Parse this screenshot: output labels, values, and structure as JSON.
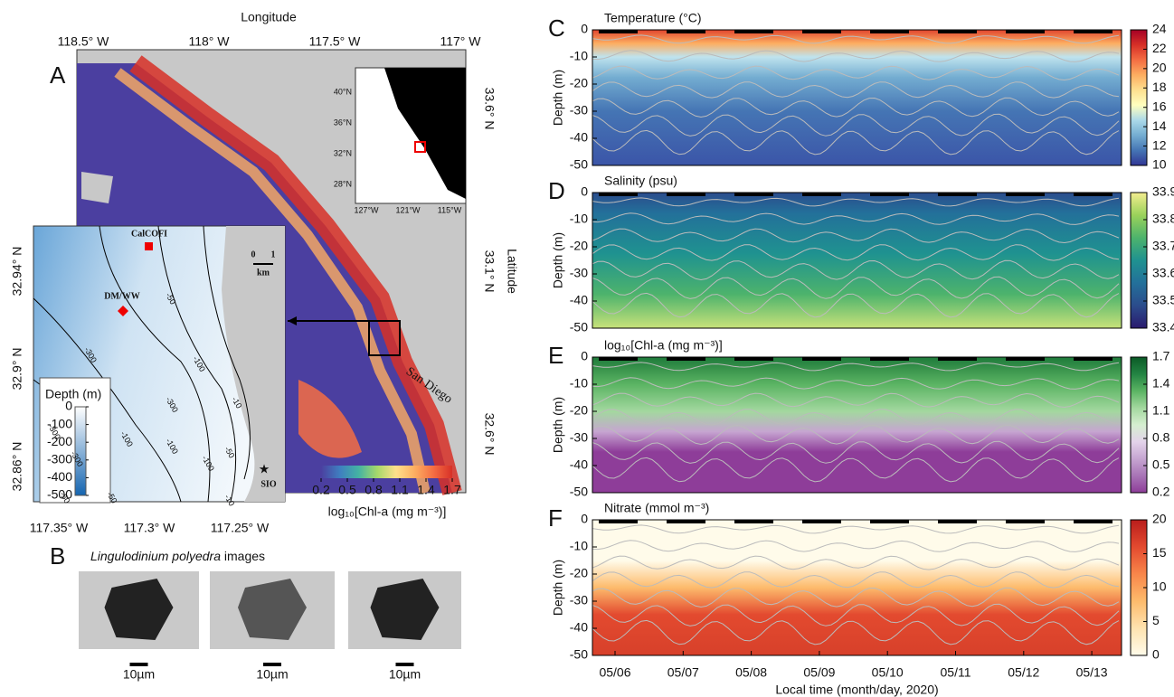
{
  "map": {
    "panel": "A",
    "x_label": "Longitude",
    "y_label": "Latitude",
    "lon_ticks": [
      "118.5° W",
      "118° W",
      "117.5° W",
      "117° W"
    ],
    "lat_ticks": [
      "33.6° N",
      "33.1° N",
      "32.6° N"
    ],
    "place": "San Diego",
    "colorbar_label": "log₁₀[Chl-a (mg m⁻³)]",
    "colorbar_ticks": [
      0.2,
      0.5,
      0.8,
      1.1,
      1.4,
      1.7
    ],
    "colormap": [
      "#4b3fa0",
      "#3f7fc0",
      "#44b3a3",
      "#a6d96a",
      "#fee08b",
      "#fdae61",
      "#f46d43",
      "#d73027"
    ],
    "overview": {
      "lat_ticks": [
        "40°N",
        "36°N",
        "32°N",
        "28°N"
      ],
      "lon_ticks": [
        "127°W",
        "121°W",
        "115°W"
      ]
    },
    "zoom": {
      "sites": [
        "CalCOFI",
        "DM/WW",
        "SIO"
      ],
      "scale": [
        "0",
        "1",
        "km"
      ],
      "contours": [
        "-50",
        "-300",
        "-100",
        "-10",
        "-300",
        "-100",
        "-50",
        "-300",
        "-100",
        "-50",
        "-10",
        "-50",
        "-100",
        "-300"
      ],
      "lat_ticks": [
        "32.94° N",
        "32.9° N",
        "32.86° N"
      ],
      "lon_ticks": [
        "117.35° W",
        "117.3° W",
        "117.25° W"
      ],
      "depth_label": "Depth (m)",
      "depth_ticks": [
        0,
        -100,
        -200,
        -300,
        -400,
        -500
      ]
    }
  },
  "images": {
    "panel": "B",
    "title": "Lingulodinium polyedra",
    "title_rest": "images",
    "scale_labels": [
      "10µm",
      "10µm",
      "10µm"
    ]
  },
  "chart_data": [
    {
      "type": "heatmap",
      "panel": "C",
      "title": "Temperature (°C)",
      "y_label": "Depth (m)",
      "ylim": [
        -50,
        0
      ],
      "yticks": [
        -50,
        -40,
        -30,
        -20,
        -10,
        0
      ],
      "colorbar_lim": [
        10,
        24
      ],
      "colorbar_ticks": [
        10,
        12,
        14,
        16,
        18,
        20,
        22,
        24
      ],
      "colormap": [
        "#313695",
        "#4575b4",
        "#74add1",
        "#abd9e9",
        "#ffffbf",
        "#fee090",
        "#fdae61",
        "#f46d43",
        "#d73027",
        "#a50026"
      ]
    },
    {
      "type": "heatmap",
      "panel": "D",
      "title": "Salinity (psu)",
      "y_label": "Depth (m)",
      "ylim": [
        -50,
        0
      ],
      "yticks": [
        -50,
        -40,
        -30,
        -20,
        -10,
        0
      ],
      "colorbar_lim": [
        33.4,
        33.9
      ],
      "colorbar_ticks": [
        33.4,
        33.5,
        33.6,
        33.7,
        33.8,
        33.9
      ],
      "colormap": [
        "#2a1a6e",
        "#2b4c8c",
        "#23709a",
        "#1f9290",
        "#4db36c",
        "#9ad25a",
        "#f3ed8f"
      ]
    },
    {
      "type": "heatmap",
      "panel": "E",
      "title": "log₁₀[Chl-a (mg m⁻³)]",
      "y_label": "Depth (m)",
      "ylim": [
        -50,
        0
      ],
      "yticks": [
        -50,
        -40,
        -30,
        -20,
        -10,
        0
      ],
      "colorbar_lim": [
        0.2,
        1.7
      ],
      "colorbar_ticks": [
        0.2,
        0.5,
        0.8,
        1.1,
        1.4,
        1.7
      ],
      "colormap": [
        "#8e3d99",
        "#a874b6",
        "#c6a5d1",
        "#e3d3ea",
        "#d6efd0",
        "#a3d89f",
        "#5bb463",
        "#238443",
        "#0b5a26"
      ]
    },
    {
      "type": "heatmap",
      "panel": "F",
      "title": "Nitrate (mmol m⁻³)",
      "y_label": "Depth (m)",
      "x_label": "Local time (month/day, 2020)",
      "categories": [
        "05/06",
        "05/07",
        "05/08",
        "05/09",
        "05/10",
        "05/11",
        "05/12",
        "05/13"
      ],
      "ylim": [
        -50,
        0
      ],
      "yticks": [
        -50,
        -40,
        -30,
        -20,
        -10,
        0
      ],
      "colorbar_lim": [
        0,
        20
      ],
      "colorbar_ticks": [
        0,
        5,
        10,
        15,
        20
      ],
      "colormap": [
        "#fffbea",
        "#fee3b0",
        "#fdbb6c",
        "#f8864a",
        "#e34a2f",
        "#b91d1c"
      ]
    }
  ]
}
